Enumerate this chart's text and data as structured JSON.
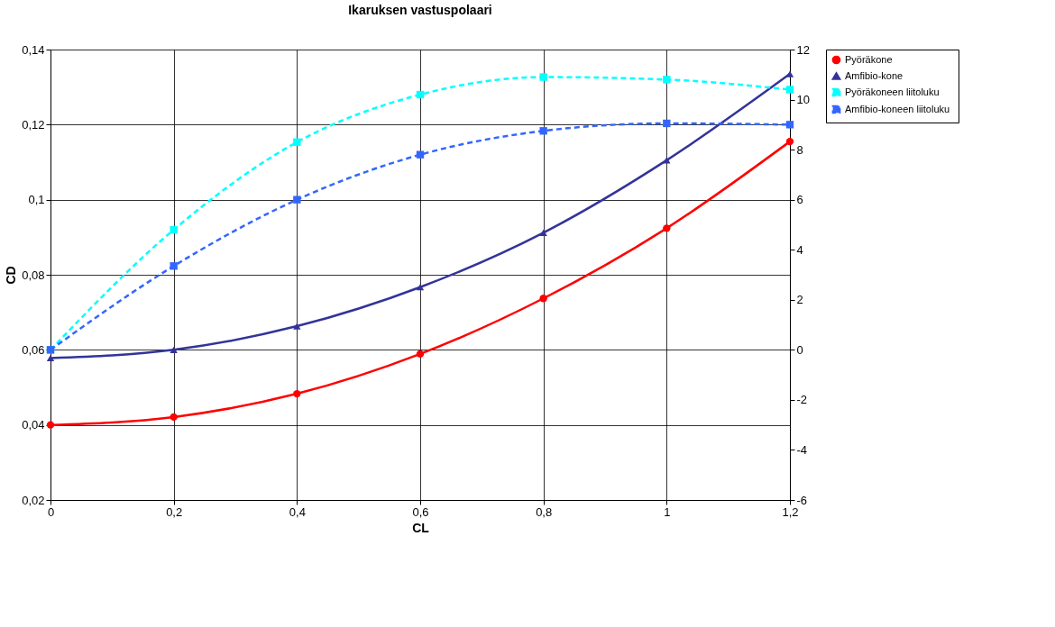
{
  "chart_data": {
    "type": "line",
    "title": "Ikaruksen vastuspolaari",
    "xlabel": "CL",
    "ylabel": "CD",
    "x": [
      0,
      0.2,
      0.4,
      0.6,
      0.8,
      1.0,
      1.2
    ],
    "xlim": [
      0,
      1.2
    ],
    "xticks": [
      0,
      {
        "value": 0.2,
        "label": "0,2"
      },
      {
        "value": 0.4,
        "label": "0,4"
      },
      {
        "value": 0.6,
        "label": "0,6"
      },
      {
        "value": 0.8,
        "label": "0,8"
      },
      1,
      {
        "value": 1.2,
        "label": "1,2"
      }
    ],
    "ylim": [
      0.02,
      0.14
    ],
    "yticks": [
      {
        "value": 0.02,
        "label": "0,02"
      },
      {
        "value": 0.04,
        "label": "0,04"
      },
      {
        "value": 0.06,
        "label": "0,06"
      },
      {
        "value": 0.08,
        "label": "0,08"
      },
      {
        "value": 0.1,
        "label": "0,1"
      },
      {
        "value": 0.12,
        "label": "0,12"
      },
      {
        "value": 0.14,
        "label": "0,14"
      }
    ],
    "y2lim": [
      -6,
      12
    ],
    "y2ticks": [
      -6,
      -4,
      -2,
      0,
      2,
      4,
      6,
      8,
      10,
      12
    ],
    "grid": true,
    "legend": "right",
    "series": [
      {
        "name": "Pyöräkone",
        "color": "#ff0000",
        "marker": "circle",
        "line_style": "solid",
        "values": [
          0.04,
          0.0421,
          0.0483,
          0.0589,
          0.0737,
          0.0924,
          0.1155
        ]
      },
      {
        "name": "Amfibio-kone",
        "color": "#333399",
        "marker": "triangle",
        "line_style": "solid",
        "values": [
          0.0578,
          0.06,
          0.0663,
          0.0767,
          0.0912,
          0.1105,
          0.1335
        ]
      },
      {
        "name": "Pyöräkoneen liitoluku",
        "color": "#00ffff",
        "marker": "square",
        "line_style": "dashed",
        "axis": "y2",
        "values": [
          0,
          4.8,
          8.3,
          10.2,
          10.9,
          10.8,
          10.4
        ]
      },
      {
        "name": "Amfibio-koneen  liitoluku",
        "color": "#3366ff",
        "marker": "square",
        "line_style": "dashed",
        "axis": "y2",
        "values": [
          0,
          3.35,
          6.0,
          7.8,
          8.75,
          9.05,
          9.0
        ]
      }
    ]
  }
}
